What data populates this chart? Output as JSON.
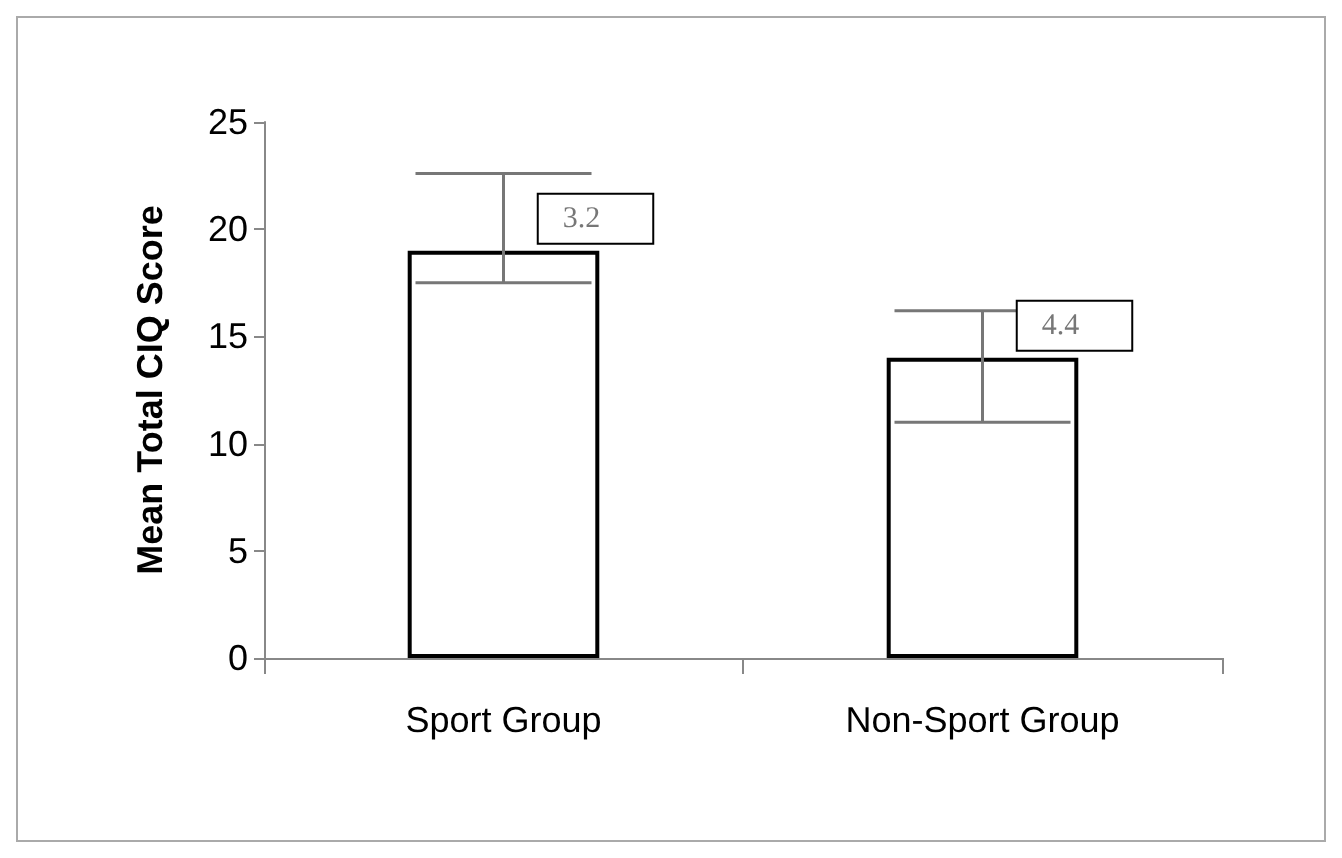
{
  "chart_data": {
    "type": "bar",
    "ylabel": "Mean Total CIQ Score",
    "categories": [
      "Sport Group",
      "Non-Sport Group"
    ],
    "values": [
      19.0,
      14.0
    ],
    "color": "#ffffff",
    "errors": [
      [
        17.5,
        22.6
      ],
      [
        11.0,
        16.2
      ]
    ],
    "ylim": [
      0,
      25
    ],
    "yticks": [
      0,
      5,
      10,
      15,
      20,
      25
    ],
    "grid": false,
    "annotations": [
      "3.2",
      "4.4"
    ]
  }
}
